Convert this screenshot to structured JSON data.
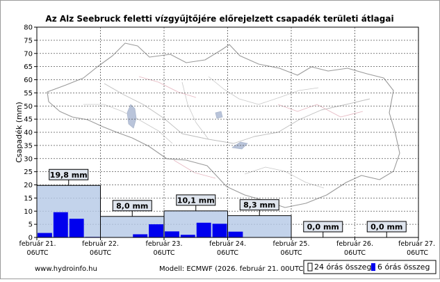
{
  "chart_data": {
    "type": "bar",
    "title": "Az Alz Seebruck feletti vízgyűjtőjére előrejelzett csapadék területi átlagai",
    "ylabel": "Csapadék (mm)",
    "ylim": [
      0,
      80
    ],
    "y_ticks": [
      0,
      5,
      10,
      15,
      20,
      25,
      30,
      35,
      40,
      45,
      50,
      55,
      60,
      65,
      70,
      75,
      80
    ],
    "grid": true,
    "x_ticks": [
      {
        "line1": "február 21.",
        "line2": "06UTC"
      },
      {
        "line1": "február 22.",
        "line2": "06UTC"
      },
      {
        "line1": "február 23.",
        "line2": "06UTC"
      },
      {
        "line1": "február 24.",
        "line2": "06UTC"
      },
      {
        "line1": "február 25.",
        "line2": "06UTC"
      },
      {
        "line1": "február 26.",
        "line2": "06UTC"
      },
      {
        "line1": "február 27.",
        "line2": "06UTC"
      }
    ],
    "series": [
      {
        "name": "24 órás összeg",
        "color": "#b4c8e6",
        "values": [
          19.8,
          8.0,
          10.1,
          8.3,
          0.0,
          0.0
        ],
        "labels": [
          "19,8 mm",
          "8,0 mm",
          "10,1 mm",
          "8,3 mm",
          "0,0 mm",
          "0,0 mm"
        ]
      },
      {
        "name": "6 órás összeg",
        "color": "#0000ee",
        "values": [
          1.7,
          9.6,
          7.1,
          0.2,
          0.0,
          0.1,
          1.2,
          5.0,
          2.3,
          1.0,
          5.6,
          5.2,
          2.2,
          0.1,
          0.0,
          0.0,
          0.0,
          0.0,
          0.0,
          0.0,
          0.0,
          0.0,
          0.0,
          0.0
        ]
      }
    ],
    "legend_position": "bottom-right"
  },
  "footer": {
    "website": "www.hydroinfo.hu",
    "model": "Modell: ECMWF (2026. február 21. 00UTC)"
  },
  "colors": {
    "background": "#ffffff",
    "plot_background": "#ffffff",
    "bar_24h": "#b4c8e6",
    "bar_6h": "#0000ee"
  }
}
